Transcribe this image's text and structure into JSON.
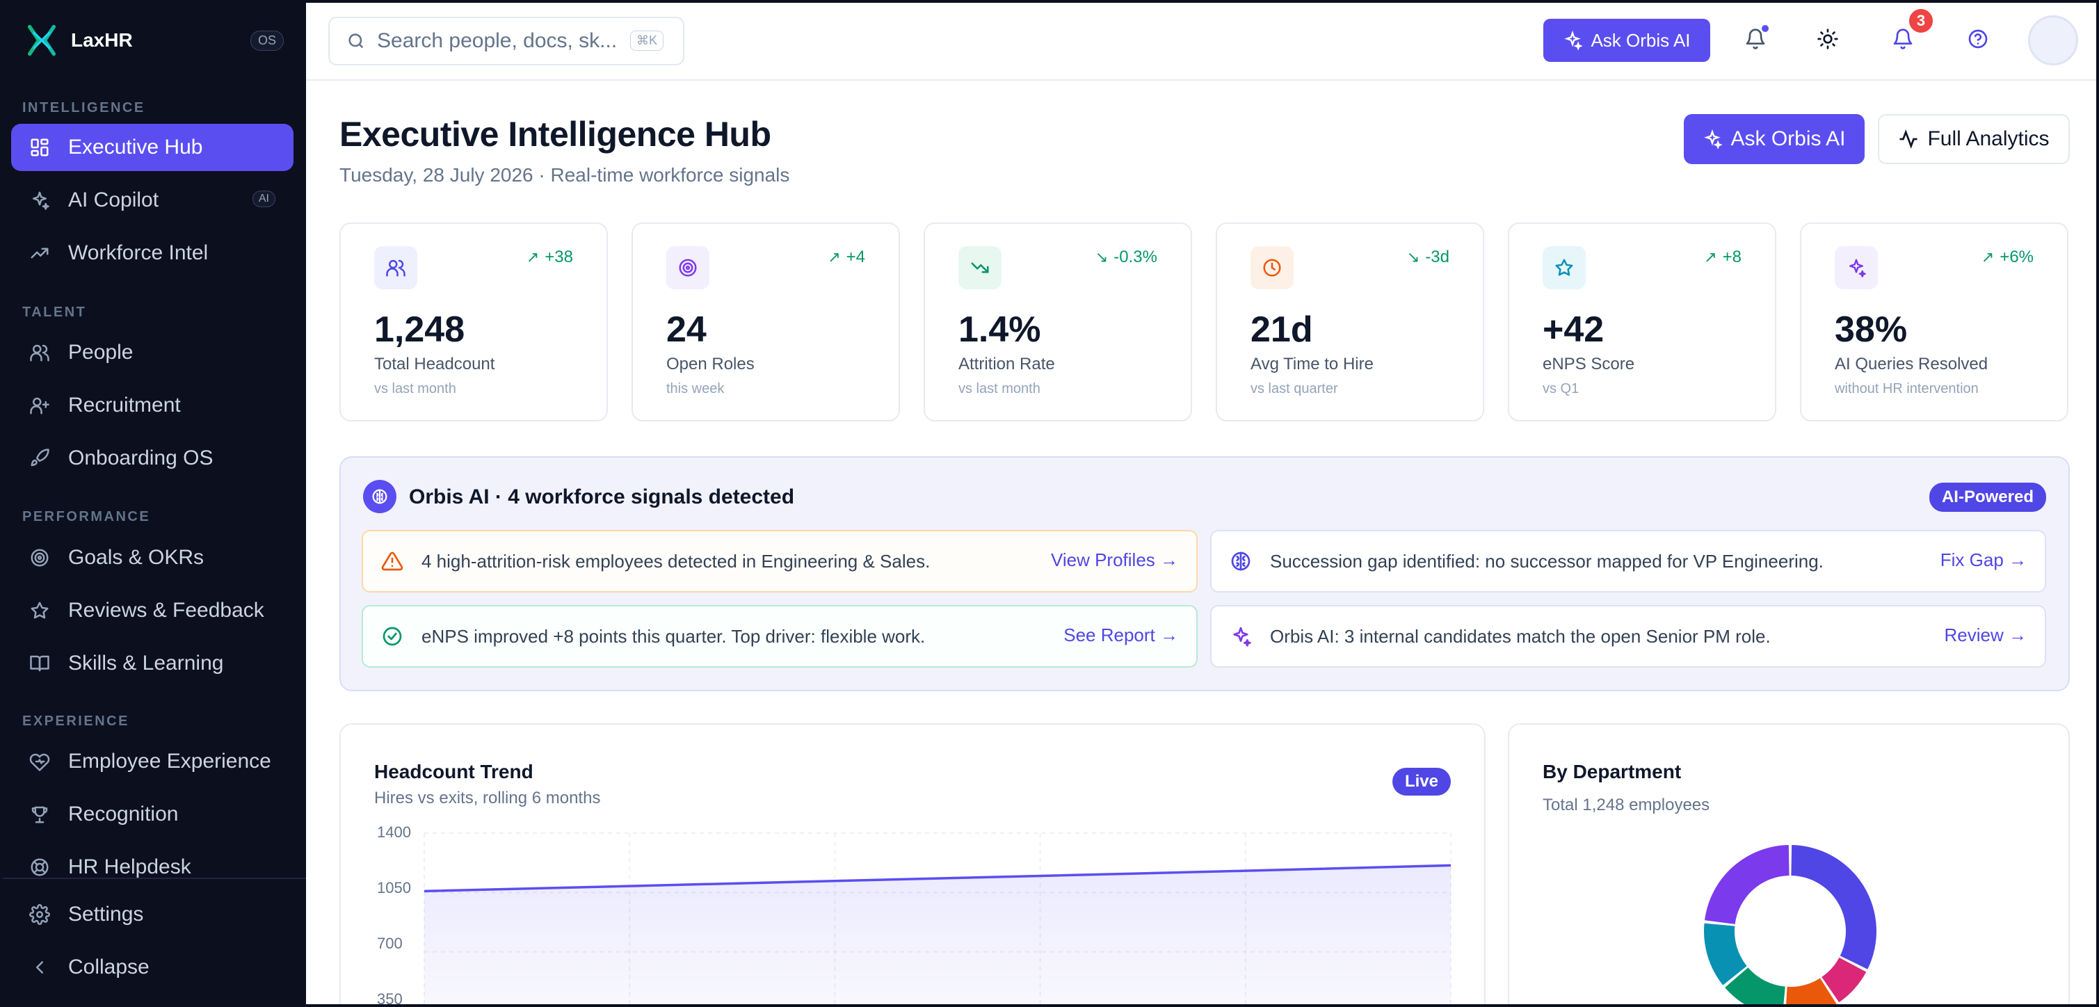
{
  "app": {
    "name": "LaxHR",
    "tag": "OS"
  },
  "sidebar": {
    "sections": {
      "intelligence": "INTELLIGENCE",
      "talent": "TALENT",
      "performance": "PERFORMANCE",
      "experience": "EXPERIENCE"
    },
    "items": [
      {
        "label": "Executive Hub",
        "icon": "grid-icon",
        "active": true
      },
      {
        "label": "AI Copilot",
        "icon": "sparkles-icon",
        "badge": "AI"
      },
      {
        "label": "Workforce Intel",
        "icon": "trending-up-icon"
      },
      {
        "label": "People",
        "icon": "users-icon"
      },
      {
        "label": "Recruitment",
        "icon": "user-plus-icon"
      },
      {
        "label": "Onboarding OS",
        "icon": "rocket-icon"
      },
      {
        "label": "Goals & OKRs",
        "icon": "target-icon"
      },
      {
        "label": "Reviews & Feedback",
        "icon": "star-icon"
      },
      {
        "label": "Skills & Learning",
        "icon": "book-icon"
      },
      {
        "label": "Employee Experience",
        "icon": "heart-icon"
      },
      {
        "label": "Recognition",
        "icon": "trophy-icon"
      },
      {
        "label": "HR Helpdesk",
        "icon": "lifebuoy-icon"
      }
    ],
    "footer": [
      {
        "label": "Settings",
        "icon": "gear-icon"
      },
      {
        "label": "Collapse",
        "icon": "chevron-left-icon"
      }
    ]
  },
  "topbar": {
    "search_placeholder": "Search people, docs, sk...",
    "search_shortcut": "⌘K",
    "ask_label": "Ask Orbis AI",
    "notification_count": "3"
  },
  "header": {
    "title": "Executive Intelligence Hub",
    "subtitle": "Tuesday, 28 July 2026 · Real-time workforce signals",
    "ask_label": "Ask Orbis AI",
    "analytics_label": "Full Analytics"
  },
  "kpis": [
    {
      "value": "1,248",
      "label": "Total Headcount",
      "sub": "vs last month",
      "delta": "+38",
      "dir": "up",
      "icon": "users-icon",
      "color": "#4f46e5"
    },
    {
      "value": "24",
      "label": "Open Roles",
      "sub": "this week",
      "delta": "+4",
      "dir": "up",
      "icon": "target-icon",
      "color": "#7c3aed"
    },
    {
      "value": "1.4%",
      "label": "Attrition Rate",
      "sub": "vs last month",
      "delta": "-0.3%",
      "dir": "down",
      "icon": "trending-down-icon",
      "color": "#059669"
    },
    {
      "value": "21d",
      "label": "Avg Time to Hire",
      "sub": "vs last quarter",
      "delta": "-3d",
      "dir": "down",
      "icon": "clock-icon",
      "color": "#ea580c"
    },
    {
      "value": "+42",
      "label": "eNPS Score",
      "sub": "vs Q1",
      "delta": "+8",
      "dir": "up",
      "icon": "star-icon",
      "color": "#0891b2"
    },
    {
      "value": "38%",
      "label": "AI Queries Resolved",
      "sub": "without HR intervention",
      "delta": "+6%",
      "dir": "up",
      "icon": "sparkles-icon",
      "color": "#7c3aed"
    }
  ],
  "signals": {
    "title": "Orbis AI · 4 workforce signals detected",
    "badge": "AI-Powered",
    "items": [
      {
        "text": "4 high-attrition-risk employees detected in Engineering & Sales.",
        "link": "View Profiles →",
        "icon": "warning-icon",
        "color": "#ea580c",
        "border": "#fcd9a8"
      },
      {
        "text": "Succession gap identified: no successor mapped for VP Engineering.",
        "link": "Fix Gap →",
        "icon": "brain-icon",
        "color": "#4f46e5",
        "border": "#d4d8f5"
      },
      {
        "text": "eNPS improved +8 points this quarter. Top driver: flexible work.",
        "link": "See Report →",
        "icon": "check-circle-icon",
        "color": "#059669",
        "border": "#b9e9d2"
      },
      {
        "text": "Orbis AI: 3 internal candidates match the open Senior PM role.",
        "link": "Review →",
        "icon": "sparkles-icon",
        "color": "#7c3aed",
        "border": "#d4d8f5"
      }
    ]
  },
  "headcount_card": {
    "title": "Headcount Trend",
    "subtitle": "Hires vs exits, rolling 6 months",
    "badge": "Live"
  },
  "department_card": {
    "title": "By Department",
    "subtitle": "Total 1,248 employees"
  },
  "chart_data": [
    {
      "type": "area",
      "title": "Headcount Trend",
      "y_ticks": [
        "1400",
        "1050",
        "700",
        "350"
      ],
      "ylim": [
        350,
        1400
      ],
      "x": [
        1,
        2,
        3,
        4,
        5,
        6
      ],
      "series": [
        {
          "values": [
            1058,
            1088,
            1118,
            1148,
            1178,
            1210
          ]
        }
      ],
      "grid": true,
      "color": "#5b4ef0"
    },
    {
      "type": "pie",
      "title": "By Department",
      "segments": [
        {
          "value": 28,
          "color": "#4f46e5"
        },
        {
          "value": 7,
          "color": "#db2777"
        },
        {
          "value": 9,
          "color": "#ea580c"
        },
        {
          "value": 11,
          "color": "#059669"
        },
        {
          "value": 11,
          "color": "#0891b2"
        },
        {
          "value": 20,
          "color": "#7c3aed"
        }
      ]
    }
  ]
}
